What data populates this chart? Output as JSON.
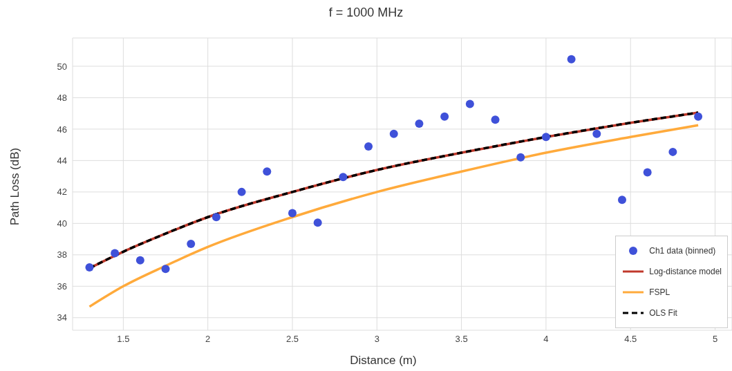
{
  "chart_data": {
    "type": "scatter",
    "title": "f = 1000 MHz",
    "xlabel": "Distance (m)",
    "ylabel": "Path Loss (dB)",
    "xlim": [
      1.2,
      5.1
    ],
    "xticks": [
      1.5,
      2,
      2.5,
      3,
      3.5,
      4,
      4.5,
      5
    ],
    "ylim": [
      33.2,
      51.8
    ],
    "yticks": [
      34,
      36,
      38,
      40,
      42,
      44,
      46,
      48,
      50
    ],
    "grid": true,
    "legend": "bottom right",
    "series": [
      {
        "name": "Ch1 data (binned)",
        "marker": "circle",
        "color": "#3f51d9",
        "x": [
          1.3,
          1.45,
          1.6,
          1.75,
          1.9,
          2.05,
          2.2,
          2.35,
          2.5,
          2.65,
          2.8,
          2.95,
          3.1,
          3.25,
          3.4,
          3.55,
          3.7,
          3.85,
          4.0,
          4.15,
          4.3,
          4.45,
          4.6,
          4.75,
          4.9
        ],
        "values": [
          37.2,
          38.1,
          37.65,
          37.1,
          38.7,
          40.4,
          42.0,
          43.3,
          40.65,
          40.05,
          42.95,
          44.9,
          45.7,
          46.35,
          46.8,
          47.6,
          46.6,
          44.2,
          45.5,
          50.45,
          45.7,
          41.5,
          43.25,
          44.55,
          46.8
        ]
      },
      {
        "name": "Log-distance model",
        "type": "line",
        "marker": "none",
        "line_style": "solid",
        "color": "#c0392b",
        "x": [
          1.3,
          1.5,
          1.75,
          2,
          2.5,
          3,
          3.5,
          4,
          4.5,
          4.9
        ],
        "values": [
          37.15,
          38.2,
          39.35,
          40.4,
          42.0,
          43.4,
          44.5,
          45.5,
          46.4,
          47.05
        ]
      },
      {
        "name": "FSPL",
        "type": "line",
        "marker": "none",
        "line_style": "solid",
        "color": "#ffaa3b",
        "x": [
          1.3,
          1.5,
          1.75,
          2,
          2.5,
          3,
          3.5,
          4,
          4.5,
          4.9
        ],
        "values": [
          34.7,
          36.0,
          37.3,
          38.5,
          40.4,
          42.0,
          43.3,
          44.5,
          45.5,
          46.25
        ]
      },
      {
        "name": "OLS Fit",
        "type": "line",
        "marker": "none",
        "line_style": "dashed",
        "color": "#000000",
        "x": [
          1.3,
          1.5,
          1.75,
          2,
          2.5,
          3,
          3.5,
          4,
          4.5,
          4.9
        ],
        "values": [
          37.15,
          38.2,
          39.35,
          40.4,
          42.0,
          43.4,
          44.5,
          45.5,
          46.4,
          47.05
        ]
      }
    ]
  }
}
